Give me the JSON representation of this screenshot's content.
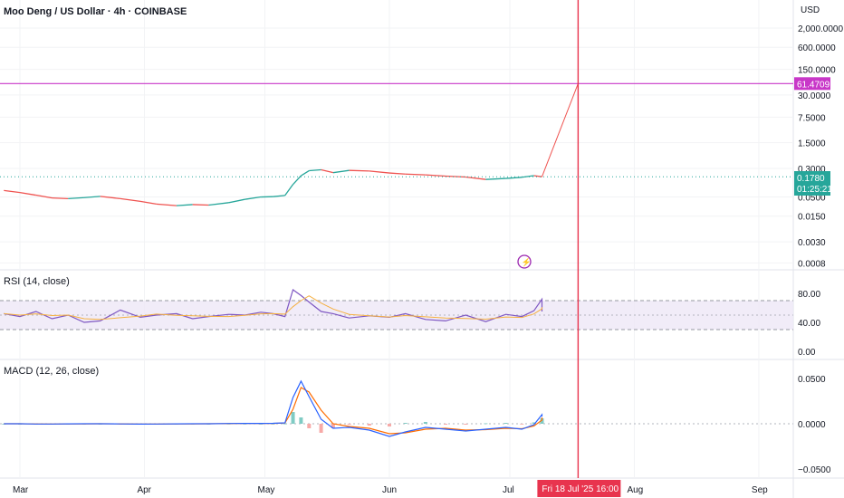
{
  "header": {
    "title": "Moo Deng / US Dollar · 4h · COINBASE",
    "currency": "USD"
  },
  "colors": {
    "up": "#26a69a",
    "down": "#ef5350",
    "rsi_line": "#7e57c2",
    "rsi_band": "#ede7f6",
    "ma_line": "#f5b041",
    "macd_line": "#2962ff",
    "signal_line": "#ff6d00",
    "crosshair": "#e8344e",
    "level_line": "#c837c8"
  },
  "chart_data": [
    {
      "type": "line",
      "title": "Moo Deng / US Dollar · 4h · COINBASE",
      "scale": "log",
      "y_ticks": [
        "2,000.0000",
        "600.0000",
        "150.0000",
        "30.0000",
        "7.5000",
        "1.5000",
        "0.3000",
        "0.0500",
        "0.0150",
        "0.0030",
        "0.0008"
      ],
      "x_ticks": [
        "Mar",
        "Apr",
        "May",
        "Jun",
        "Jul",
        "Aug",
        "Sep"
      ],
      "series": [
        {
          "values": [
            [
              "Feb 25",
              0.075
            ],
            [
              "Mar 1",
              0.066
            ],
            [
              "Mar 5",
              0.056
            ],
            [
              "Mar 9",
              0.047
            ],
            [
              "Mar 13",
              0.045
            ],
            [
              "Mar 17",
              0.048
            ],
            [
              "Mar 21",
              0.052
            ],
            [
              "Mar 26",
              0.045
            ],
            [
              "Mar 31",
              0.038
            ],
            [
              "Apr 4",
              0.032
            ],
            [
              "Apr 9",
              0.029
            ],
            [
              "Apr 13",
              0.031
            ],
            [
              "Apr 17",
              0.03
            ],
            [
              "Apr 22",
              0.035
            ],
            [
              "Apr 26",
              0.043
            ],
            [
              "Apr 30",
              0.05
            ],
            [
              "May 3",
              0.051
            ],
            [
              "May 6",
              0.055
            ],
            [
              "May 8",
              0.11
            ],
            [
              "May 10",
              0.19
            ],
            [
              "May 12",
              0.26
            ],
            [
              "May 15",
              0.275
            ],
            [
              "May 18",
              0.23
            ],
            [
              "May 22",
              0.265
            ],
            [
              "May 27",
              0.255
            ],
            [
              "Jun 1",
              0.225
            ],
            [
              "Jun 5",
              0.21
            ],
            [
              "Jun 10",
              0.2
            ],
            [
              "Jun 15",
              0.185
            ],
            [
              "Jun 20",
              0.175
            ],
            [
              "Jun 25",
              0.15
            ],
            [
              "Jun 30",
              0.16
            ],
            [
              "Jul 4",
              0.172
            ],
            [
              "Jul 7",
              0.19
            ],
            [
              "Jul 9",
              0.178
            ]
          ]
        }
      ],
      "projection": {
        "from": [
          "Jul 9",
          0.178
        ],
        "to": [
          "Jul 18",
          61.4709
        ]
      },
      "level_label": "61.4709",
      "last_price": "0.1780",
      "countdown": "01:25:21",
      "crosshair_label": "Fri 18 Jul '25   16:00"
    },
    {
      "type": "line",
      "title": "RSI (14, close)",
      "y_ticks": [
        "80.00",
        "40.00",
        "0.00"
      ],
      "band": [
        30,
        70
      ],
      "middle": 50,
      "series": [
        {
          "name": "RSI",
          "values": [
            52,
            48,
            55,
            45,
            50,
            40,
            42,
            57,
            47,
            50,
            52,
            45,
            48,
            51,
            50,
            54,
            52,
            48,
            85,
            77,
            68,
            55,
            52,
            46,
            49,
            47,
            52,
            44,
            42,
            50,
            41,
            51,
            48,
            56,
            72,
            55
          ]
        }
      ]
    },
    {
      "type": "line",
      "title": "MACD (12, 26, close)",
      "y_ticks": [
        "0.0500",
        "0.0000",
        "−0.0500"
      ],
      "series": [
        {
          "name": "MACD",
          "values": [
            0.0,
            0.0,
            -0.0003,
            -0.0003,
            -0.0001,
            0.0,
            0.0,
            -0.0002,
            -0.0004,
            -0.0003,
            -0.0001,
            0.0,
            0.0,
            0.0003,
            0.0004,
            0.0004,
            0.0005,
            0.001,
            0.029,
            0.047,
            0.03,
            0.005,
            -0.005,
            -0.004,
            -0.007,
            -0.014,
            -0.009,
            -0.004,
            -0.006,
            -0.008,
            -0.006,
            -0.004,
            -0.006,
            -0.001,
            0.01,
            0.008
          ]
        },
        {
          "name": "Signal",
          "values": [
            0.0,
            0.0,
            -0.0002,
            -0.0003,
            -0.0002,
            -0.0001,
            0.0,
            -0.0001,
            -0.0003,
            -0.0003,
            -0.0002,
            -0.0001,
            0.0,
            0.0002,
            0.0003,
            0.0004,
            0.0004,
            0.0008,
            0.016,
            0.04,
            0.035,
            0.015,
            0.0,
            -0.003,
            -0.005,
            -0.011,
            -0.01,
            -0.006,
            -0.005,
            -0.007,
            -0.0065,
            -0.005,
            -0.0055,
            -0.0025,
            0.004,
            0.007
          ]
        },
        {
          "name": "Histogram",
          "values": [
            0.0,
            0.0,
            -0.0001,
            0.0,
            0.0001,
            0.0001,
            0.0,
            -0.0001,
            -0.0001,
            0.0,
            0.0001,
            0.0001,
            0.0,
            0.0001,
            0.0001,
            0.0,
            0.0001,
            0.0002,
            0.013,
            0.007,
            -0.005,
            -0.01,
            -0.005,
            -0.001,
            -0.002,
            -0.003,
            0.001,
            0.002,
            -0.001,
            -0.001,
            0.0005,
            0.001,
            -0.0005,
            0.0015,
            0.006,
            0.001
          ]
        }
      ]
    }
  ]
}
